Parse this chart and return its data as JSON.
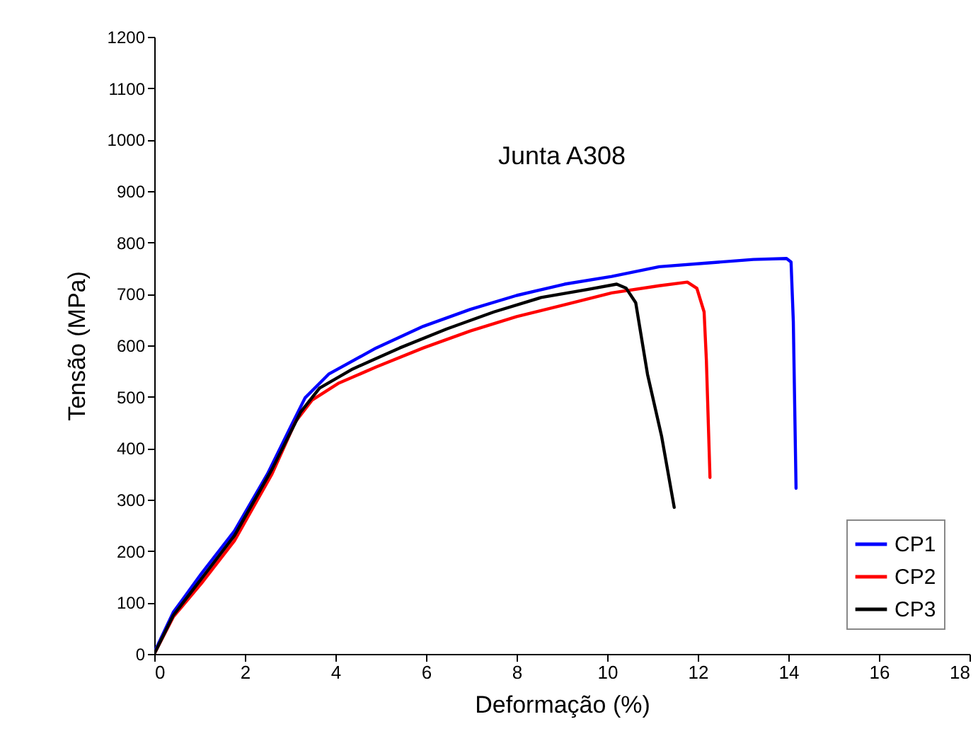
{
  "chart_data": {
    "type": "line",
    "title": "Junta A308",
    "xlabel": "Deformação  (%)",
    "ylabel": "Tensão  (MPa)",
    "xlim": [
      0,
      18
    ],
    "xticks": [
      0,
      2,
      4,
      6,
      8,
      10,
      12,
      14,
      16,
      18
    ],
    "ylim": [
      0,
      1200
    ],
    "yticks": [
      0,
      100,
      200,
      300,
      400,
      500,
      600,
      700,
      800,
      900,
      1000,
      1100,
      1200
    ],
    "grid": false,
    "legend": "bottom right",
    "line_style": "solid",
    "series": [
      {
        "name": "CP1",
        "color": "#0000ff",
        "x": [
          0,
          0.42,
          1.04,
          1.77,
          2.5,
          3.02,
          3.33,
          3.85,
          4.9,
          5.94,
          6.98,
          8.0,
          9.06,
          10.1,
          11.15,
          12.19,
          13.23,
          13.96,
          14.06,
          14.11,
          14.17
        ],
        "values": [
          3,
          81,
          156,
          239,
          350,
          443,
          498,
          544,
          595,
          637,
          670,
          697,
          719,
          734,
          753,
          760,
          767,
          769,
          762,
          646,
          322
        ]
      },
      {
        "name": "CP2",
        "color": "#ff0000",
        "x": [
          0,
          0.42,
          1.04,
          1.77,
          2.6,
          3.12,
          3.49,
          4.06,
          4.9,
          5.94,
          6.98,
          8.0,
          9.06,
          10.1,
          11.15,
          11.77,
          11.98,
          12.14,
          12.19,
          12.27
        ],
        "values": [
          0,
          72,
          137,
          220,
          350,
          452,
          494,
          526,
          558,
          595,
          628,
          656,
          679,
          702,
          716,
          723,
          711,
          665,
          572,
          343
        ]
      },
      {
        "name": "CP3",
        "color": "#000000",
        "x": [
          0,
          0.42,
          1.04,
          1.77,
          2.6,
          3.23,
          3.65,
          4.38,
          5.42,
          6.46,
          7.5,
          8.54,
          9.58,
          10.21,
          10.42,
          10.63,
          10.89,
          11.2,
          11.48
        ],
        "values": [
          0,
          75,
          146,
          230,
          359,
          470,
          517,
          554,
          595,
          632,
          665,
          693,
          709,
          719,
          711,
          683,
          544,
          424,
          285
        ]
      }
    ]
  }
}
